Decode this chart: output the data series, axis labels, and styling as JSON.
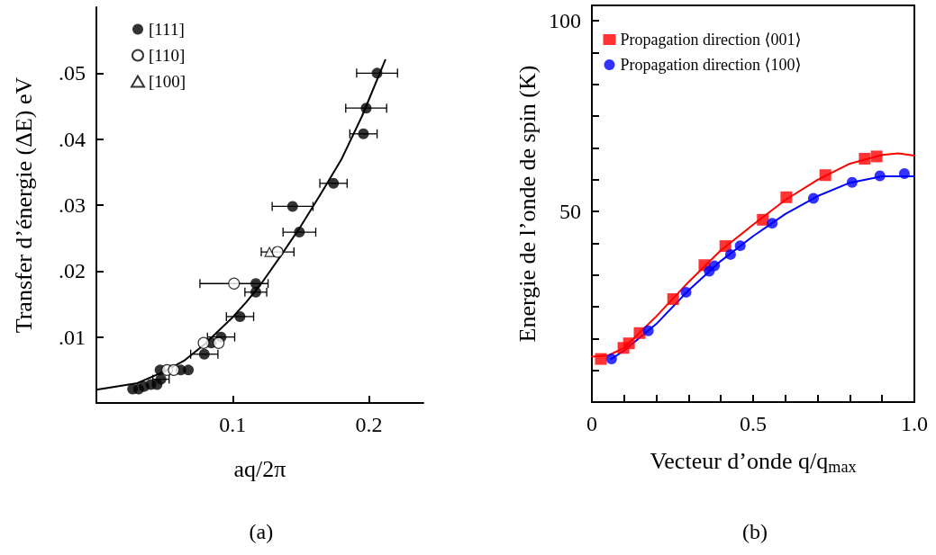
{
  "chart_data": [
    {
      "type": "scatter",
      "xlabel": "aq/2π",
      "ylabel": "Transfer d’énergie (ΔE) eV",
      "annotations": [
        "(a)"
      ],
      "xlim": [
        0,
        0.24
      ],
      "ylim": [
        0,
        0.06
      ],
      "xticks": [
        0.1,
        0.2
      ],
      "yticks": [
        {
          "value": 0.01,
          "label": ".01"
        },
        {
          "value": 0.02,
          "label": ".02"
        },
        {
          "value": 0.03,
          "label": ".03"
        },
        {
          "value": 0.04,
          "label": ".04"
        },
        {
          "value": 0.05,
          "label": ".05"
        }
      ],
      "grid": false,
      "legend": "top left",
      "series": [
        {
          "name": "[111]",
          "color": "#000000",
          "marker": "circle",
          "x": [
            0.206,
            0.198,
            0.196,
            0.174,
            0.144,
            0.149,
            0.117,
            0.117,
            0.1054,
            0.0915,
            0.0843,
            0.0792,
            0.0467,
            0.0619,
            0.0675,
            0.0474,
            0.0445,
            0.04,
            0.035,
            0.031,
            0.0266
          ],
          "values": [
            0.05,
            0.0447,
            0.0408,
            0.0333,
            0.0298,
            0.0259,
            0.0181,
            0.0168,
            0.0131,
            0.01,
            0.0091,
            0.0074,
            0.005,
            0.005,
            0.005,
            0.0036,
            0.0028,
            0.0028,
            0.0025,
            0.0021,
            0.0021
          ],
          "xerrors": [
            0.015,
            0.015,
            0.01,
            0.01,
            0.015,
            0.012,
            null,
            0.008,
            0.01,
            0.01,
            null,
            0.01,
            null,
            null,
            null,
            0.006,
            null,
            null,
            null,
            null,
            null
          ]
        },
        {
          "name": "[110]",
          "color": "#ffffff",
          "marker": "circle",
          "x": [
            0.133,
            0.101,
            0.0787,
            0.0897,
            0.0519,
            0.0568
          ],
          "values": [
            0.0229,
            0.0181,
            0.0091,
            0.0091,
            0.005,
            0.005
          ],
          "xerrors": [
            0.012,
            0.025,
            null,
            null,
            null,
            null
          ]
        },
        {
          "name": "[100]",
          "color": "#ffffff",
          "marker": "triangle",
          "x": [
            0.127
          ],
          "values": [
            0.0229
          ]
        },
        {
          "type": "line",
          "color": "#000000",
          "marker": "none",
          "x": [
            0,
            0.03,
            0.05,
            0.065,
            0.08,
            0.09,
            0.1,
            0.11,
            0.12,
            0.135,
            0.15,
            0.165,
            0.18,
            0.195,
            0.212
          ],
          "values": [
            0.002,
            0.003,
            0.0048,
            0.0065,
            0.009,
            0.011,
            0.013,
            0.0153,
            0.0178,
            0.0222,
            0.0268,
            0.0318,
            0.037,
            0.0435,
            0.052
          ]
        }
      ]
    },
    {
      "type": "scatter",
      "xlabel": "Vecteur d’onde q/q$_{max}$",
      "ylabel": "Energie de l’onde de spin (K)",
      "annotations": [
        "(b)"
      ],
      "xlim": [
        0,
        1
      ],
      "ylim": [
        0,
        104
      ],
      "xticks": [
        0,
        {
          "value": 0.1,
          "label": null
        },
        {
          "value": 0.2,
          "label": null
        },
        {
          "value": 0.3,
          "label": null
        },
        {
          "value": 0.4,
          "label": null
        },
        0.5,
        {
          "value": 0.6,
          "label": null
        },
        {
          "value": 0.7,
          "label": null
        },
        {
          "value": 0.8,
          "label": null
        },
        {
          "value": 0.9,
          "label": null
        },
        {
          "value": 1,
          "label": "1.0"
        }
      ],
      "yticks": [
        {
          "value": 8.33,
          "label": null
        },
        {
          "value": 16.67,
          "label": null
        },
        {
          "value": 25,
          "label": null
        },
        {
          "value": 33.33,
          "label": null
        },
        {
          "value": 41.67,
          "label": null
        },
        50,
        {
          "value": 58.33,
          "label": null
        },
        {
          "value": 66.67,
          "label": null
        },
        {
          "value": 75,
          "label": null
        },
        {
          "value": 83.33,
          "label": null
        },
        {
          "value": 91.67,
          "label": null
        },
        100
      ],
      "grid": false,
      "legend": "top",
      "series": [
        {
          "name": "Propagation direction ⟨001⟩",
          "color": "#ff0000",
          "marker": "square",
          "x": [
            0.028,
            0.098,
            0.115,
            0.148,
            0.252,
            0.349,
            0.414,
            0.53,
            0.603,
            0.724,
            0.846,
            0.883
          ],
          "values": [
            11.3,
            14.2,
            15.4,
            18.1,
            27.0,
            35.9,
            40.9,
            47.8,
            53.7,
            59.5,
            63.8,
            64.4
          ]
        },
        {
          "name": "Propagation direction ⟨100⟩",
          "color": "#0000ff",
          "marker": "circle",
          "x": [
            0.061,
            0.175,
            0.292,
            0.364,
            0.38,
            0.43,
            0.46,
            0.559,
            0.687,
            0.807,
            0.893,
            0.969
          ],
          "values": [
            11.3,
            18.7,
            28.8,
            34.3,
            35.7,
            38.7,
            41.0,
            46.9,
            53.4,
            57.6,
            59.3,
            59.9
          ]
        },
        {
          "type": "line",
          "color": "#ff0000",
          "marker": "none",
          "x": [
            0,
            0.05,
            0.1,
            0.2,
            0.3,
            0.4,
            0.5,
            0.6,
            0.7,
            0.8,
            0.9,
            0.95,
            1
          ],
          "values": [
            11.9,
            12.2,
            14.2,
            22.5,
            31.5,
            39.8,
            46.5,
            53,
            58.3,
            62.5,
            64.8,
            65.2,
            64.6
          ]
        },
        {
          "type": "line",
          "color": "#0000ff",
          "marker": "none",
          "x": [
            0.06,
            0.1,
            0.2,
            0.3,
            0.4,
            0.5,
            0.6,
            0.7,
            0.8,
            0.9,
            1
          ],
          "values": [
            11.3,
            13.5,
            20.5,
            29.3,
            37,
            43.5,
            49.3,
            54,
            57.5,
            59.2,
            59.2
          ]
        }
      ]
    }
  ]
}
